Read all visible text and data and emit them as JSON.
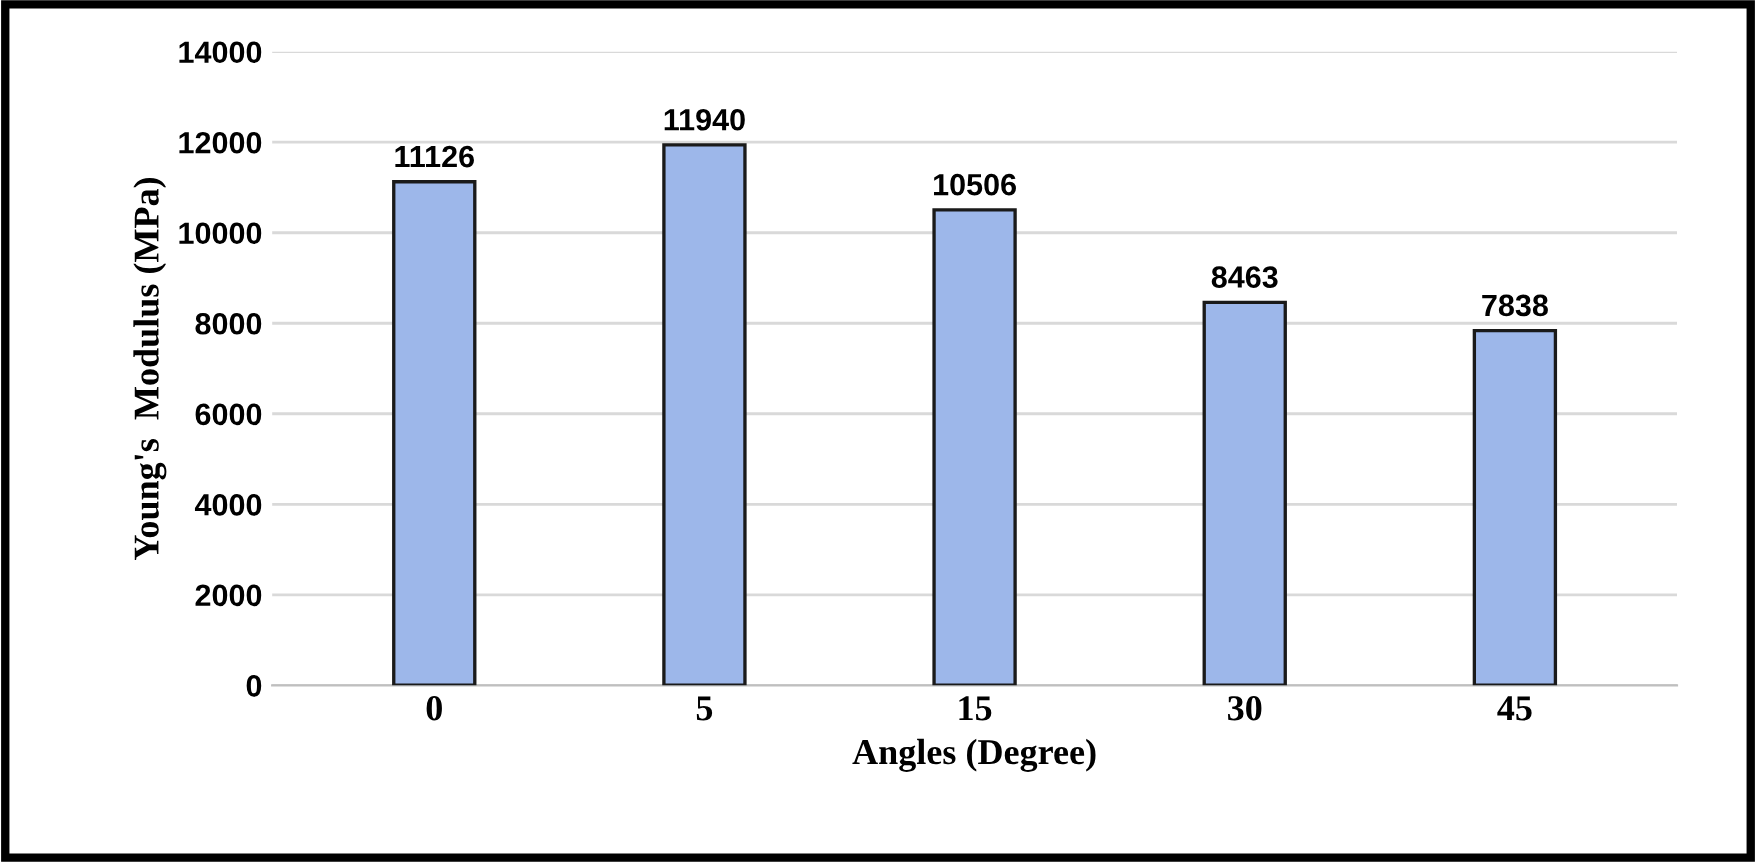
{
  "chart_data": {
    "type": "bar",
    "xlabel": "Angles (Degree)",
    "ylabel": "Young's  Modulus (MPa)",
    "categories": [
      "0",
      "5",
      "15",
      "30",
      "45"
    ],
    "values": [
      11126,
      11940,
      10506,
      8463,
      7838
    ],
    "color": "#9db7ea",
    "ylim": [
      0,
      14000
    ],
    "yticks": [
      0,
      2000,
      4000,
      6000,
      8000,
      10000,
      12000,
      14000
    ],
    "grid": "y",
    "data_labels": true
  }
}
